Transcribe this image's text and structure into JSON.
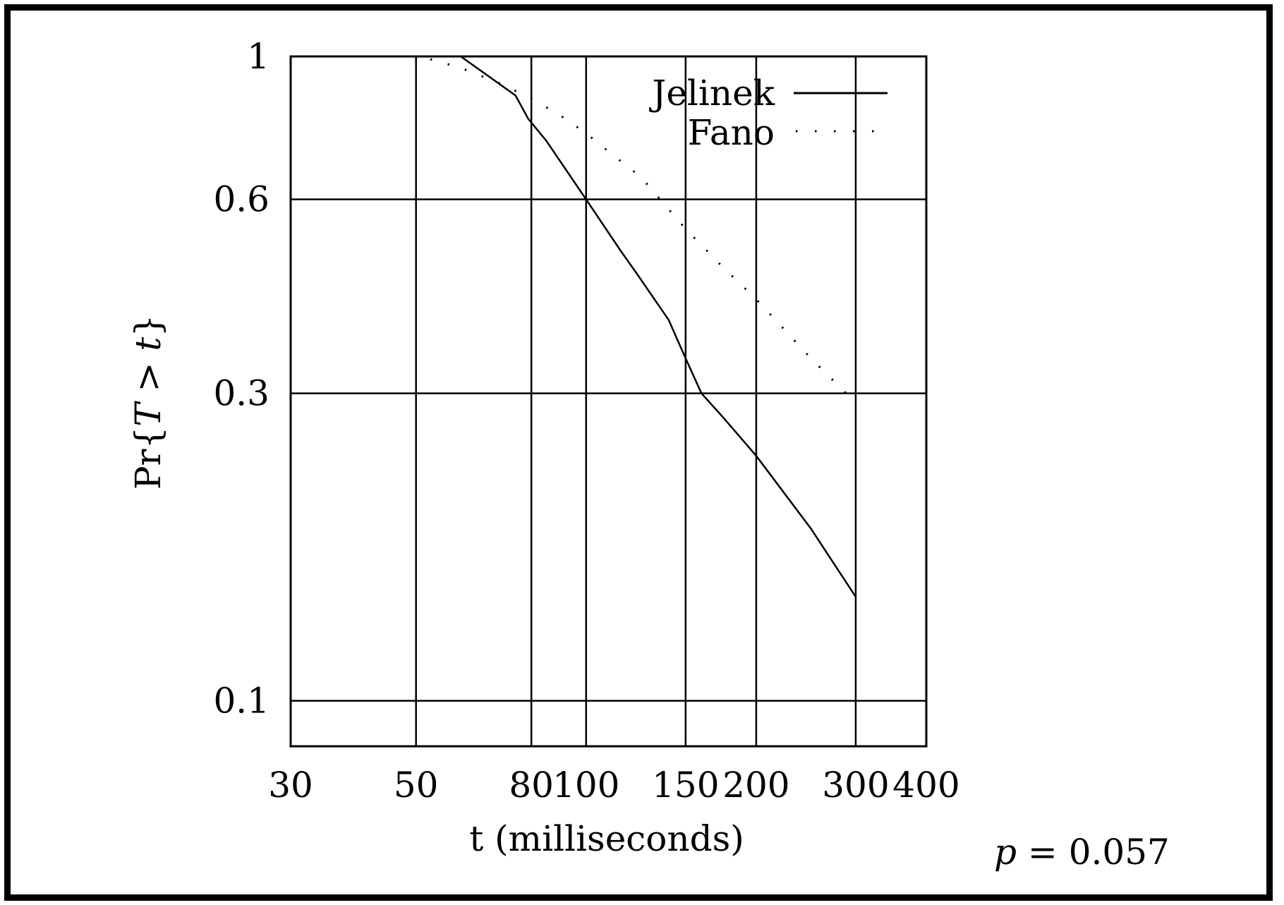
{
  "chart_data": {
    "type": "line",
    "x_scale": "log",
    "y_scale": "log",
    "xlim": [
      30,
      400
    ],
    "ylim": [
      0.085,
      1
    ],
    "xticks": [
      "30",
      "50",
      "80",
      "100",
      "150",
      "200",
      "300",
      "400"
    ],
    "xtick_values": [
      30,
      50,
      80,
      100,
      150,
      200,
      300,
      400
    ],
    "yticks": [
      "1",
      "0.6",
      "0.3",
      "0.1"
    ],
    "ytick_values": [
      1,
      0.6,
      0.3,
      0.1
    ],
    "grid": true,
    "xlabel": "t (milliseconds)",
    "ylabel": {
      "prefix": "Pr{",
      "var1": "T",
      "op": " > ",
      "var2": "t",
      "suffix": "}"
    },
    "legend_position": "top-right",
    "series": [
      {
        "name": "Jelinek",
        "style": "solid",
        "x": [
          60,
          75,
          79,
          85,
          100,
          115,
          123,
          140,
          150,
          160,
          175,
          200,
          250,
          300
        ],
        "y": [
          1.0,
          0.87,
          0.8,
          0.74,
          0.6,
          0.5,
          0.46,
          0.39,
          0.34,
          0.3,
          0.275,
          0.24,
          0.185,
          0.145
        ]
      },
      {
        "name": "Fano",
        "style": "dotted",
        "x": [
          53,
          60,
          70,
          80,
          90,
          100,
          110,
          125,
          150,
          175,
          200,
          250,
          300
        ],
        "y": [
          0.99,
          0.96,
          0.91,
          0.86,
          0.81,
          0.76,
          0.71,
          0.65,
          0.54,
          0.47,
          0.42,
          0.34,
          0.29
        ]
      }
    ],
    "annotation": {
      "var": "p",
      "text": " = 0.057"
    }
  }
}
